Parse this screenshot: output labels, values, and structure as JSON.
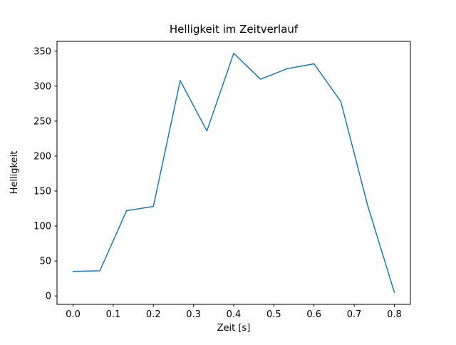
{
  "figure": {
    "background": "#ffffff"
  },
  "chart_data": {
    "type": "line",
    "title": "Helligkeit im Zeitverlauf",
    "xlabel": "Zeit [s]",
    "ylabel": "Helligkeit",
    "x": [
      0.0,
      0.0667,
      0.1333,
      0.2,
      0.2667,
      0.3333,
      0.4,
      0.4667,
      0.5333,
      0.6,
      0.6667,
      0.7333,
      0.8
    ],
    "y": [
      35,
      36,
      122,
      128,
      308,
      236,
      347,
      310,
      325,
      332,
      278,
      130,
      5
    ],
    "xlim": [
      -0.04,
      0.84
    ],
    "ylim": [
      -12.1,
      364.1
    ],
    "xticks": [
      0.0,
      0.1,
      0.2,
      0.3,
      0.4,
      0.5,
      0.6,
      0.7,
      0.8
    ],
    "yticks": [
      0,
      50,
      100,
      150,
      200,
      250,
      300,
      350
    ],
    "line_color": "#1f77b4",
    "axis_color": "#000000",
    "grid": false,
    "legend_position": "none"
  }
}
